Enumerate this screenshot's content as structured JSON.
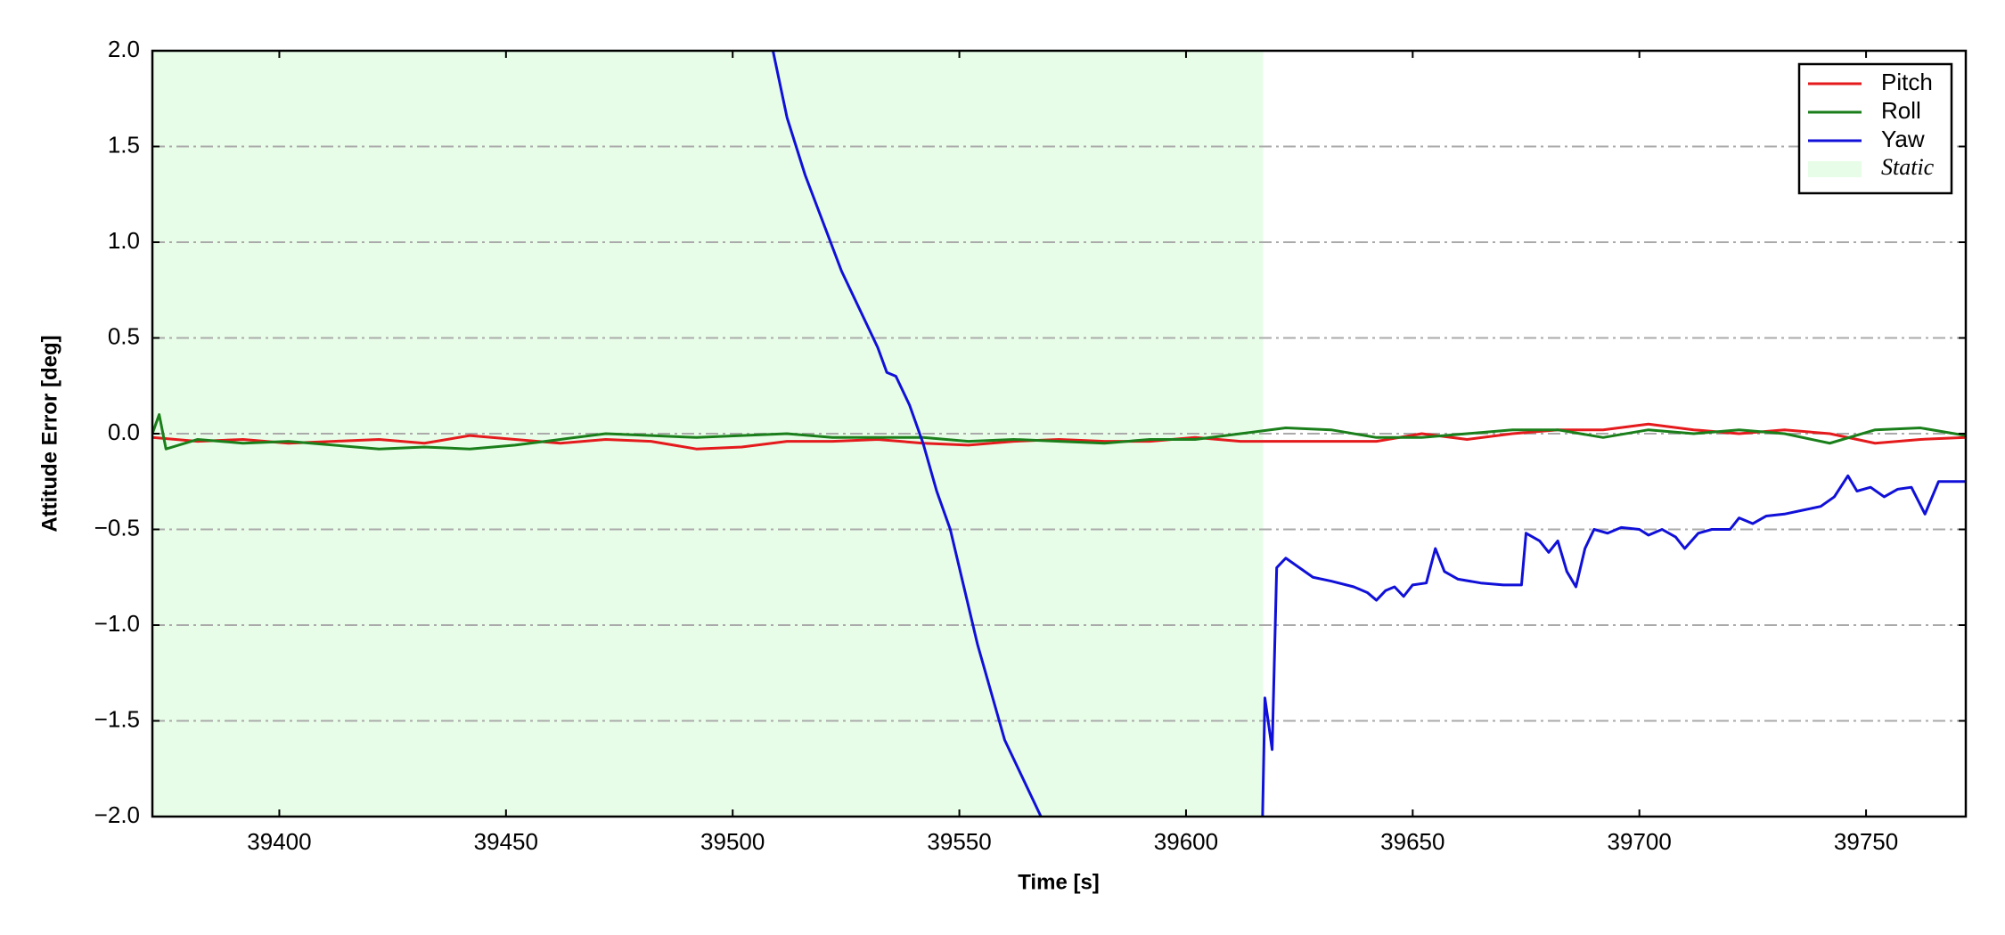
{
  "chart_data": {
    "type": "line",
    "x_label": "Time [s]",
    "y_label": "Attitude Error [deg]",
    "xlim": [
      39372,
      39772
    ],
    "ylim": [
      -2.0,
      2.0
    ],
    "xticks": [
      39400,
      39450,
      39500,
      39550,
      39600,
      39650,
      39700,
      39750
    ],
    "yticks": [
      {
        "value": -2.0,
        "label": "−2.0"
      },
      {
        "value": -1.5,
        "label": "−1.5"
      },
      {
        "value": -1.0,
        "label": "−1.0"
      },
      {
        "value": -0.5,
        "label": "−0.5"
      },
      {
        "value": 0.0,
        "label": "0.0"
      },
      {
        "value": 0.5,
        "label": "0.5"
      },
      {
        "value": 1.0,
        "label": "1.0"
      },
      {
        "value": 1.5,
        "label": "1.5"
      },
      {
        "value": 2.0,
        "label": "2.0"
      }
    ],
    "grid": true,
    "legend": "upper right",
    "span": {
      "name": "Static",
      "x": [
        39372,
        39617
      ],
      "color": "#e8fde8"
    },
    "series": [
      {
        "name": "Pitch",
        "color": "#e41a1c",
        "x": [
          39372,
          39382,
          39392,
          39402,
          39412,
          39422,
          39432,
          39442,
          39452,
          39462,
          39472,
          39482,
          39492,
          39502,
          39512,
          39522,
          39532,
          39542,
          39552,
          39562,
          39572,
          39582,
          39592,
          39602,
          39612,
          39622,
          39632,
          39642,
          39652,
          39662,
          39672,
          39682,
          39692,
          39702,
          39712,
          39722,
          39732,
          39742,
          39752,
          39762,
          39772
        ],
        "values": [
          -0.02,
          -0.04,
          -0.03,
          -0.05,
          -0.04,
          -0.03,
          -0.05,
          -0.01,
          -0.03,
          -0.05,
          -0.03,
          -0.04,
          -0.08,
          -0.07,
          -0.04,
          -0.04,
          -0.03,
          -0.05,
          -0.06,
          -0.04,
          -0.03,
          -0.04,
          -0.04,
          -0.02,
          -0.04,
          -0.04,
          -0.04,
          -0.04,
          0.0,
          -0.03,
          0.0,
          0.02,
          0.02,
          0.05,
          0.02,
          0.0,
          0.02,
          0.0,
          -0.05,
          -0.03,
          -0.02
        ]
      },
      {
        "name": "Roll",
        "color": "#1a7f1a",
        "x": [
          39372,
          39373.5,
          39375,
          39382,
          39392,
          39402,
          39412,
          39422,
          39432,
          39442,
          39452,
          39462,
          39472,
          39482,
          39492,
          39502,
          39512,
          39522,
          39532,
          39542,
          39552,
          39562,
          39572,
          39582,
          39592,
          39602,
          39612,
          39622,
          39632,
          39642,
          39652,
          39662,
          39672,
          39682,
          39692,
          39702,
          39712,
          39722,
          39732,
          39742,
          39752,
          39762,
          39772
        ],
        "values": [
          0.0,
          0.1,
          -0.08,
          -0.03,
          -0.05,
          -0.04,
          -0.06,
          -0.08,
          -0.07,
          -0.08,
          -0.06,
          -0.03,
          0.0,
          -0.01,
          -0.02,
          -0.01,
          0.0,
          -0.02,
          -0.02,
          -0.02,
          -0.04,
          -0.03,
          -0.04,
          -0.05,
          -0.03,
          -0.03,
          0.0,
          0.03,
          0.02,
          -0.02,
          -0.02,
          0.0,
          0.02,
          0.02,
          -0.02,
          0.02,
          0.0,
          0.02,
          0.0,
          -0.05,
          0.02,
          0.03,
          -0.01
        ]
      },
      {
        "name": "Yaw",
        "color": "#1010d8",
        "x": [
          39508,
          39512,
          39516,
          39520,
          39524,
          39528,
          39532,
          39534,
          39536,
          39539,
          39542,
          39545,
          39548,
          39551,
          39554,
          39557,
          39560,
          39563,
          39566,
          39569,
          39593,
          39616.8,
          39617.4,
          39619,
          39620,
          39622,
          39625,
          39628,
          39632,
          39637,
          39640,
          39642,
          39644,
          39646,
          39648,
          39650,
          39653,
          39655,
          39657,
          39660,
          39665,
          39670,
          39674,
          39675,
          39678,
          39680,
          39682,
          39684,
          39686,
          39688,
          39690,
          39693,
          39696,
          39700,
          39702,
          39705,
          39708,
          39710,
          39713,
          39716,
          39720,
          39722,
          39725,
          39728,
          39732,
          39736,
          39740,
          39743,
          39746,
          39748,
          39751,
          39754,
          39757,
          39760,
          39763,
          39766,
          39772
        ],
        "values": [
          2.1,
          1.65,
          1.35,
          1.1,
          0.85,
          0.65,
          0.45,
          0.32,
          0.3,
          0.15,
          -0.05,
          -0.3,
          -0.5,
          -0.8,
          -1.1,
          -1.35,
          -1.6,
          -1.75,
          -1.9,
          -2.05,
          null,
          -2.1,
          -1.38,
          -1.65,
          -0.7,
          -0.65,
          -0.7,
          -0.75,
          -0.77,
          -0.8,
          -0.83,
          -0.87,
          -0.82,
          -0.8,
          -0.85,
          -0.79,
          -0.78,
          -0.6,
          -0.72,
          -0.76,
          -0.78,
          -0.79,
          -0.79,
          -0.52,
          -0.56,
          -0.62,
          -0.56,
          -0.72,
          -0.8,
          -0.6,
          -0.5,
          -0.52,
          -0.49,
          -0.5,
          -0.53,
          -0.5,
          -0.54,
          -0.6,
          -0.52,
          -0.5,
          -0.5,
          -0.44,
          -0.47,
          -0.43,
          -0.42,
          -0.4,
          -0.38,
          -0.33,
          -0.22,
          -0.3,
          -0.28,
          -0.33,
          -0.29,
          -0.28,
          -0.42,
          -0.25,
          -0.25
        ]
      }
    ]
  }
}
